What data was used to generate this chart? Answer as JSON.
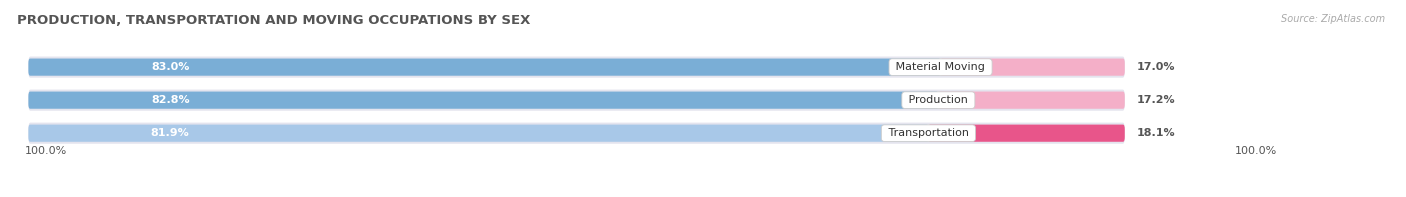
{
  "title": "PRODUCTION, TRANSPORTATION AND MOVING OCCUPATIONS BY SEX",
  "source_text": "Source: ZipAtlas.com",
  "categories": [
    "Material Moving",
    "Production",
    "Transportation"
  ],
  "male_values": [
    83.0,
    82.8,
    81.9
  ],
  "female_values": [
    17.0,
    17.2,
    18.1
  ],
  "male_color_0": "#7aaed6",
  "male_color_1": "#7aaed6",
  "male_color_2": "#a8c8e8",
  "female_color_0": "#f4afc8",
  "female_color_1": "#f4afc8",
  "female_color_2": "#e8558a",
  "bar_bg_color": "#e4e4ee",
  "title_fontsize": 9.5,
  "source_fontsize": 7,
  "bar_label_fontsize": 8,
  "category_fontsize": 8,
  "legend_fontsize": 8,
  "axis_fontsize": 8,
  "bg_color": "#ffffff",
  "x_left_label": "100.0%",
  "x_right_label": "100.0%"
}
